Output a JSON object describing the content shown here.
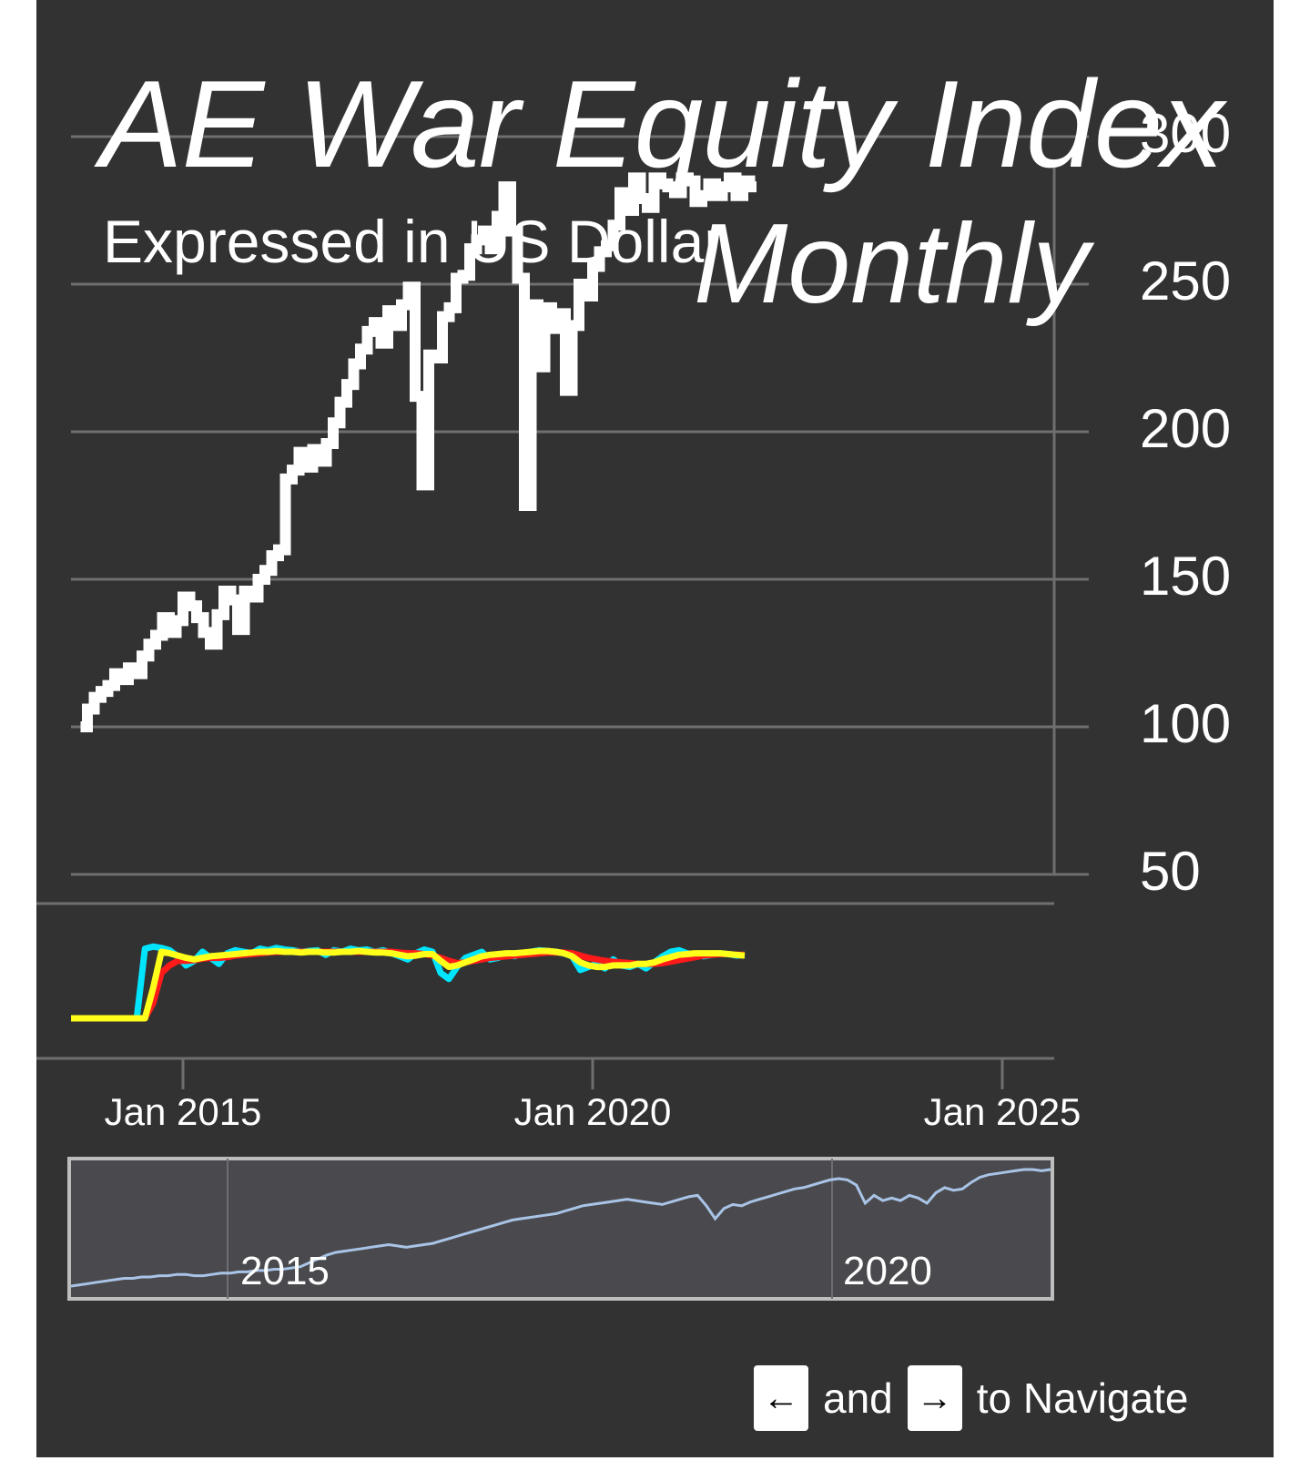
{
  "chart_data": {
    "type": "line",
    "title": "AE War Equity Index",
    "subtitle": "Expressed in US Dollar",
    "frequency_label": "Monthly",
    "y_ticks": [
      "50",
      "100",
      "150",
      "200",
      "250",
      "300"
    ],
    "ylim": [
      50,
      300
    ],
    "x_ticks": [
      "Jan 2015",
      "Jan 2020",
      "Jan 2025"
    ],
    "xlim": [
      "2013-09",
      "2025-11"
    ],
    "grid": true,
    "series": [
      {
        "color": "#ffffff",
        "x": [
          "2013-10",
          "2013-11",
          "2013-12",
          "2014-01",
          "2014-02",
          "2014-03",
          "2014-04",
          "2014-05",
          "2014-06",
          "2014-07",
          "2014-08",
          "2014-09",
          "2014-10",
          "2014-11",
          "2014-12",
          "2015-01",
          "2015-02",
          "2015-03",
          "2015-04",
          "2015-05",
          "2015-06",
          "2015-07",
          "2015-08",
          "2015-09",
          "2015-10",
          "2015-11",
          "2015-12",
          "2016-01",
          "2016-02",
          "2016-03",
          "2016-04",
          "2016-05",
          "2016-06",
          "2016-07",
          "2016-08",
          "2016-09",
          "2016-10",
          "2016-11",
          "2016-12",
          "2017-01",
          "2017-02",
          "2017-03",
          "2017-04",
          "2017-05",
          "2017-06",
          "2017-07",
          "2017-08",
          "2017-09",
          "2017-10",
          "2017-11",
          "2017-12",
          "2018-01",
          "2018-02",
          "2018-03",
          "2018-04",
          "2018-05",
          "2018-06",
          "2018-07",
          "2018-08",
          "2018-09",
          "2018-10",
          "2018-11",
          "2018-12",
          "2019-01",
          "2019-02",
          "2019-03",
          "2019-04",
          "2019-05",
          "2019-06",
          "2019-07",
          "2019-08",
          "2019-09",
          "2019-10",
          "2019-11",
          "2019-12",
          "2020-01",
          "2020-02",
          "2020-03",
          "2020-04",
          "2020-05",
          "2020-06",
          "2020-07",
          "2020-08",
          "2020-09",
          "2020-10",
          "2020-11",
          "2020-12",
          "2021-01",
          "2021-02",
          "2021-03",
          "2021-04",
          "2021-05",
          "2021-06",
          "2021-07",
          "2021-08",
          "2021-09",
          "2021-10",
          "2021-11",
          "2021-12"
        ],
        "values": [
          100,
          106,
          110,
          112,
          114,
          118,
          116,
          120,
          118,
          124,
          128,
          131,
          137,
          132,
          136,
          144,
          141,
          137,
          132,
          128,
          138,
          146,
          143,
          133,
          146,
          144,
          150,
          153,
          158,
          160,
          184,
          187,
          193,
          188,
          194,
          190,
          196,
          203,
          210,
          216,
          223,
          228,
          234,
          237,
          230,
          241,
          236,
          243,
          249,
          212,
          182,
          226,
          225,
          239,
          242,
          252,
          253,
          262,
          265,
          268,
          262,
          273,
          283,
          268,
          252,
          175,
          243,
          222,
          242,
          235,
          240,
          214,
          236,
          250,
          246,
          256,
          261,
          263,
          270,
          281,
          275,
          286,
          279,
          276,
          286,
          284,
          283,
          281,
          286,
          285,
          278,
          280,
          284,
          280,
          283,
          286,
          280,
          285,
          283
        ]
      }
    ],
    "indicator_series": [
      {
        "color": "#00e5ff",
        "values": [
          0,
          0,
          0,
          0,
          0,
          0,
          0,
          0,
          0,
          92,
          95,
          93,
          90,
          82,
          70,
          76,
          88,
          80,
          72,
          86,
          90,
          88,
          86,
          92,
          90,
          93,
          91,
          90,
          88,
          89,
          90,
          84,
          90,
          88,
          92,
          90,
          91,
          88,
          90,
          86,
          82,
          78,
          86,
          91,
          88,
          60,
          52,
          68,
          80,
          84,
          88,
          78,
          80,
          85,
          82,
          86,
          88,
          90,
          89,
          88,
          86,
          82,
          64,
          68,
          72,
          66,
          78,
          70,
          68,
          72,
          66,
          74,
          82,
          88,
          90,
          86,
          84,
          82,
          84,
          86,
          85,
          83,
          84
        ]
      },
      {
        "color": "#ff1a1a",
        "values": [
          0,
          0,
          0,
          0,
          0,
          0,
          0,
          0,
          0,
          0,
          20,
          60,
          70,
          76,
          76,
          77,
          79,
          80,
          80,
          81,
          83,
          84,
          85,
          86,
          87,
          88,
          88,
          88,
          88,
          88,
          88,
          88,
          88,
          88,
          88,
          88,
          88,
          88,
          88,
          88,
          87,
          86,
          86,
          85,
          83,
          80,
          76,
          73,
          74,
          76,
          78,
          80,
          81,
          82,
          83,
          84,
          85,
          86,
          87,
          87,
          87,
          86,
          83,
          80,
          78,
          76,
          75,
          74,
          73,
          72,
          72,
          72,
          73,
          75,
          77,
          79,
          81,
          83,
          84,
          85,
          85,
          84,
          84
        ]
      },
      {
        "color": "#ffff1a",
        "values": [
          0,
          0,
          0,
          0,
          0,
          0,
          0,
          0,
          0,
          0,
          40,
          88,
          86,
          83,
          80,
          78,
          80,
          82,
          83,
          84,
          85,
          86,
          87,
          88,
          88,
          89,
          88,
          88,
          87,
          88,
          88,
          87,
          87,
          88,
          88,
          89,
          88,
          87,
          87,
          86,
          84,
          82,
          83,
          85,
          85,
          76,
          68,
          70,
          74,
          78,
          82,
          84,
          85,
          86,
          86,
          87,
          88,
          89,
          89,
          88,
          86,
          82,
          74,
          70,
          68,
          68,
          70,
          70,
          70,
          72,
          72,
          74,
          78,
          81,
          84,
          85,
          86,
          86,
          86,
          86,
          85,
          84,
          83
        ]
      }
    ],
    "navigator": {
      "x_ticks": [
        "2015",
        "2020"
      ],
      "values": [
        100,
        101,
        102,
        103,
        104,
        105,
        106,
        106,
        107,
        107,
        108,
        108,
        109,
        109,
        108,
        108,
        109,
        110,
        110,
        111,
        111,
        112,
        112,
        113,
        113,
        114,
        115,
        118,
        121,
        124,
        126,
        127,
        128,
        129,
        130,
        131,
        132,
        131,
        130,
        131,
        132,
        133,
        135,
        137,
        139,
        141,
        143,
        145,
        147,
        149,
        151,
        152,
        153,
        154,
        155,
        156,
        158,
        160,
        162,
        163,
        164,
        165,
        166,
        167,
        166,
        165,
        164,
        163,
        165,
        167,
        169,
        170,
        162,
        152,
        160,
        163,
        162,
        165,
        167,
        169,
        171,
        173,
        175,
        176,
        178,
        180,
        182,
        183,
        182,
        178,
        164,
        170,
        166,
        168,
        166,
        170,
        168,
        164,
        172,
        176,
        174,
        175,
        180,
        184,
        186,
        187,
        188,
        189,
        190,
        190,
        189,
        190
      ]
    }
  },
  "navigation_hint": {
    "left_key": "←",
    "conjunction": "and",
    "right_key": "→",
    "suffix": "to Navigate"
  }
}
